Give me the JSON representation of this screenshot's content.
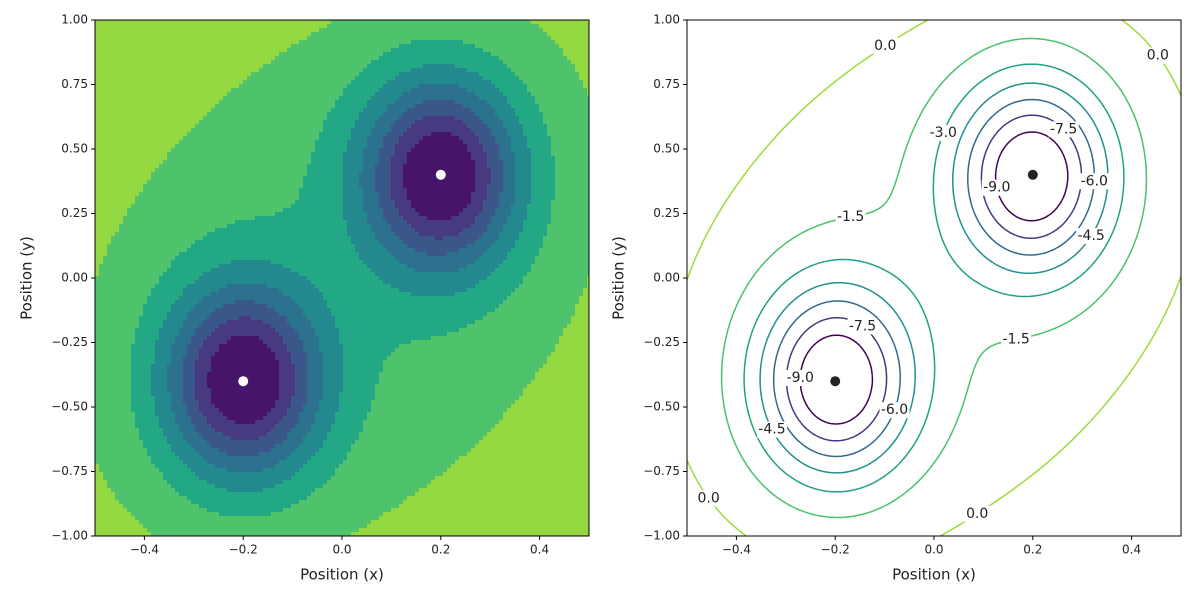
{
  "chart_data": [
    {
      "type": "contourf",
      "xlabel": "Position (x)",
      "ylabel": "Position (y)",
      "xlim": [
        -0.5,
        0.5
      ],
      "ylim": [
        -1,
        1
      ],
      "xticks": [
        {
          "value": -0.4,
          "label": "−0.4"
        },
        {
          "value": -0.2,
          "label": "−0.2"
        },
        {
          "value": 0,
          "label": "0.0"
        },
        0.2,
        0.4
      ],
      "yticks": [
        {
          "value": -1,
          "label": "−1.00"
        },
        {
          "value": -0.75,
          "label": "−0.75"
        },
        {
          "value": -0.5,
          "label": "−0.50"
        },
        {
          "value": -0.25,
          "label": "−0.25"
        },
        {
          "value": 0,
          "label": "0.00"
        },
        {
          "value": 0.25,
          "label": "0.25"
        },
        {
          "value": 0.5,
          "label": "0.50"
        },
        {
          "value": 0.75,
          "label": "0.75"
        },
        {
          "value": 1,
          "label": "1.00"
        }
      ],
      "levels": [
        -12,
        -9,
        -7.5,
        -6,
        -4.5,
        -3,
        -1.5,
        0,
        3
      ],
      "colors": [
        "#461468",
        "#473a80",
        "#3b578a",
        "#2c728e",
        "#23898e",
        "#22a884",
        "#4ec36b",
        "#93d741"
      ],
      "points": {
        "x": [
          -0.2,
          0.2
        ],
        "y": [
          -0.4,
          0.4
        ],
        "color": "#ffffff"
      }
    },
    {
      "type": "contour",
      "xlabel": "Position (x)",
      "ylabel": "Position (y)",
      "xlim": [
        -0.5,
        0.5
      ],
      "ylim": [
        -1,
        1
      ],
      "xticks": [
        {
          "value": -0.4,
          "label": "−0.4"
        },
        {
          "value": -0.2,
          "label": "−0.2"
        },
        {
          "value": 0,
          "label": "0.0"
        },
        0.2,
        0.4
      ],
      "yticks": [
        {
          "value": -1,
          "label": "−1.00"
        },
        {
          "value": -0.75,
          "label": "−0.75"
        },
        {
          "value": -0.5,
          "label": "−0.50"
        },
        {
          "value": -0.25,
          "label": "−0.25"
        },
        {
          "value": 0,
          "label": "0.00"
        },
        {
          "value": 0.25,
          "label": "0.25"
        },
        {
          "value": 0.5,
          "label": "0.50"
        },
        {
          "value": 0.75,
          "label": "0.75"
        },
        {
          "value": 1,
          "label": "1.00"
        }
      ],
      "levels": [
        {
          "value": -9,
          "label": "-9.0"
        },
        {
          "value": -7.5,
          "label": "-7.5"
        },
        {
          "value": -6,
          "label": "-6.0"
        },
        {
          "value": -4.5,
          "label": "-4.5"
        },
        {
          "value": -3,
          "label": "-3.0"
        },
        {
          "value": -1.5,
          "label": "-1.5"
        },
        {
          "value": 0,
          "label": "0.0"
        }
      ],
      "colors": [
        "#440154",
        "#443983",
        "#31688e",
        "#21918c",
        "#1fa187",
        "#4ac16d",
        "#a0da39"
      ],
      "points": {
        "x": [
          -0.2,
          0.2
        ],
        "y": [
          -0.4,
          0.4
        ],
        "color": "#222222"
      }
    }
  ]
}
